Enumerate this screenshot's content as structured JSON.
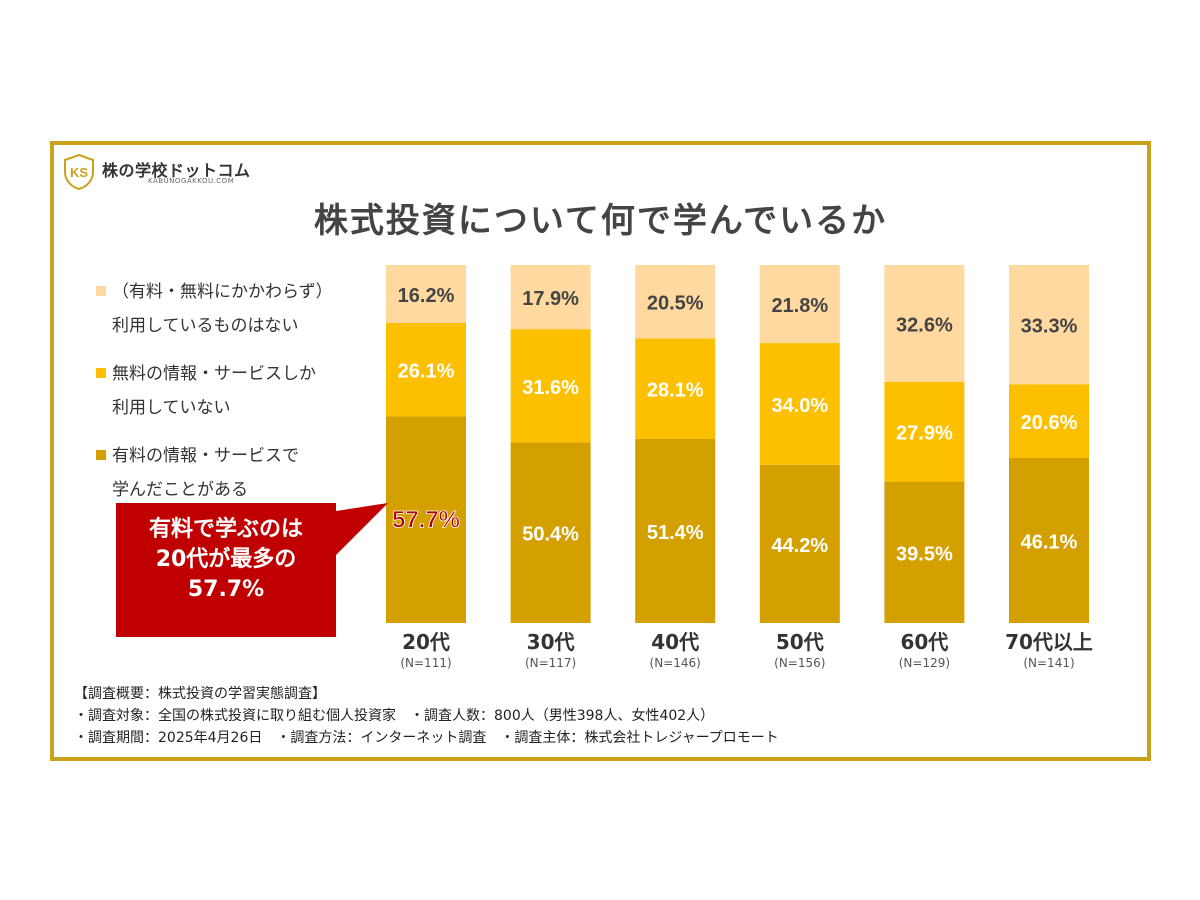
{
  "brand": {
    "logo_name": "株の学校ドットコム",
    "logo_sub": "KABUNOGAKKOU.COM",
    "logo_mark": "KS",
    "colors": {
      "frame": "#c9a11a"
    }
  },
  "chart_data": {
    "type": "bar",
    "stacked": true,
    "title": "株式投資について何で学んでいるか",
    "categories": [
      "20代",
      "30代",
      "40代",
      "50代",
      "60代",
      "70代以上"
    ],
    "sample_sizes": [
      "(N=111)",
      "(N=117)",
      "(N=146)",
      "(N=156)",
      "(N=129)",
      "(N=141)"
    ],
    "series": [
      {
        "name": "有料の情報・サービスで学んだことがある",
        "legend_lines": [
          "有料の情報・サービスで",
          "学んだことがある"
        ],
        "color": "#d4a000",
        "values": [
          57.7,
          50.4,
          51.4,
          44.2,
          39.5,
          46.1
        ]
      },
      {
        "name": "無料の情報・サービスしか利用していない",
        "legend_lines": [
          "無料の情報・サービスしか",
          "利用していない"
        ],
        "color": "#fdc000",
        "values": [
          26.1,
          31.6,
          28.1,
          34.0,
          27.9,
          20.6
        ]
      },
      {
        "name": "（有料・無料にかかわらず）利用しているものはない",
        "legend_lines": [
          "（有料・無料にかかわらず）",
          "利用しているものはない"
        ],
        "color": "#ffd9a0",
        "values": [
          16.2,
          17.9,
          20.5,
          21.8,
          32.6,
          33.3
        ]
      }
    ],
    "ylim": [
      0,
      100
    ],
    "highlight": {
      "category_index": 0,
      "series_index": 0,
      "color": "#b00000"
    },
    "legend_position": "left",
    "grid": false,
    "unit": "%"
  },
  "callout": {
    "lines": [
      "有料で学ぶのは",
      "20代が最多の",
      "57.7%"
    ],
    "color": "#c00000"
  },
  "footer": {
    "lines": [
      "【調査概要：株式投資の学習実態調査】",
      "・調査対象：全国の株式投資に取り組む個人投資家　・調査人数：800人（男性398人、女性402人）",
      "・調査期間：2025年4月26日　・調査方法：インターネット調査　・調査主体：株式会社トレジャープロモート"
    ]
  }
}
